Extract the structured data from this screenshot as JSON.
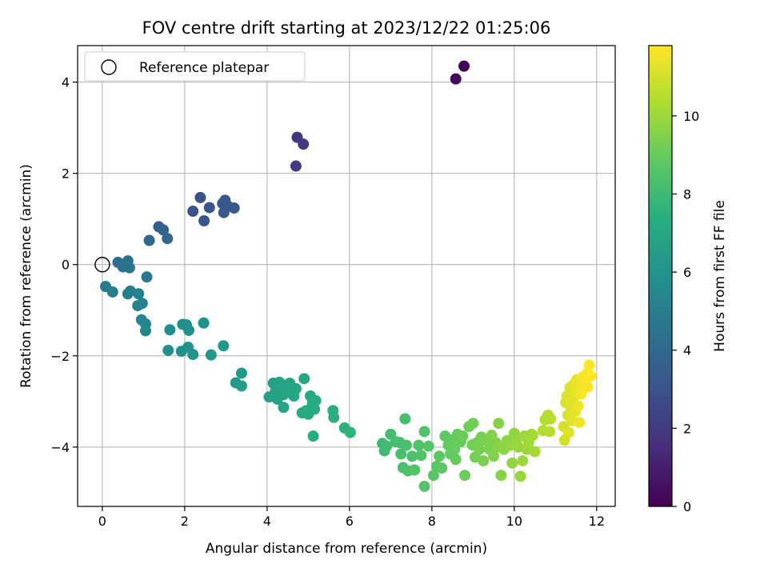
{
  "chart_data": {
    "type": "scatter",
    "title": "FOV centre drift starting at 2023/12/22 01:25:06",
    "xlabel": "Angular distance from reference (arcmin)",
    "ylabel": "Rotation from reference (arcmin)",
    "xlim": [
      -0.6,
      12.45
    ],
    "ylim": [
      -5.3,
      4.8
    ],
    "xticks": [
      0,
      2,
      4,
      6,
      8,
      10,
      12
    ],
    "yticks": [
      -4,
      -2,
      0,
      2,
      4
    ],
    "grid": true,
    "legend": {
      "placement": "top-left",
      "entries": [
        "Reference platepar"
      ]
    },
    "reference_point": {
      "x": 0,
      "y": 0
    },
    "colorbar": {
      "label": "Hours from first FF file",
      "range": [
        0,
        11.8
      ],
      "ticks": [
        0,
        2,
        4,
        6,
        8,
        10
      ],
      "colormap": "viridis"
    },
    "points": [
      {
        "x": 8.78,
        "y": 4.35,
        "c": 0.1
      },
      {
        "x": 8.58,
        "y": 4.07,
        "c": 0.3
      },
      {
        "x": 4.73,
        "y": 2.79,
        "c": 1.8
      },
      {
        "x": 4.88,
        "y": 2.64,
        "c": 1.9
      },
      {
        "x": 4.7,
        "y": 2.16,
        "c": 2.0
      },
      {
        "x": 2.38,
        "y": 1.47,
        "c": 3.0
      },
      {
        "x": 2.2,
        "y": 1.17,
        "c": 3.0
      },
      {
        "x": 2.47,
        "y": 0.96,
        "c": 3.1
      },
      {
        "x": 2.6,
        "y": 1.25,
        "c": 3.1
      },
      {
        "x": 2.92,
        "y": 1.34,
        "c": 3.2
      },
      {
        "x": 2.98,
        "y": 1.41,
        "c": 3.2
      },
      {
        "x": 3.05,
        "y": 1.28,
        "c": 3.2
      },
      {
        "x": 2.95,
        "y": 1.14,
        "c": 3.3
      },
      {
        "x": 3.2,
        "y": 1.24,
        "c": 3.3
      },
      {
        "x": 1.37,
        "y": 0.83,
        "c": 3.6
      },
      {
        "x": 1.48,
        "y": 0.76,
        "c": 3.7
      },
      {
        "x": 1.58,
        "y": 0.57,
        "c": 3.8
      },
      {
        "x": 1.14,
        "y": 0.53,
        "c": 3.9
      },
      {
        "x": 0.38,
        "y": 0.05,
        "c": 4.3
      },
      {
        "x": 0.5,
        "y": -0.05,
        "c": 4.4
      },
      {
        "x": 0.62,
        "y": 0.08,
        "c": 4.4
      },
      {
        "x": 0.66,
        "y": -0.07,
        "c": 4.5
      },
      {
        "x": 1.08,
        "y": -0.27,
        "c": 4.6
      },
      {
        "x": 0.08,
        "y": -0.48,
        "c": 4.8
      },
      {
        "x": 0.25,
        "y": -0.6,
        "c": 4.9
      },
      {
        "x": 0.62,
        "y": -0.64,
        "c": 5.0
      },
      {
        "x": 0.68,
        "y": -0.58,
        "c": 5.0
      },
      {
        "x": 0.88,
        "y": -0.64,
        "c": 5.1
      },
      {
        "x": 0.86,
        "y": -0.9,
        "c": 5.2
      },
      {
        "x": 0.97,
        "y": -0.85,
        "c": 5.2
      },
      {
        "x": 0.95,
        "y": -1.21,
        "c": 5.3
      },
      {
        "x": 1.05,
        "y": -1.3,
        "c": 5.3
      },
      {
        "x": 1.05,
        "y": -1.45,
        "c": 5.4
      },
      {
        "x": 1.64,
        "y": -1.43,
        "c": 5.7
      },
      {
        "x": 1.6,
        "y": -1.88,
        "c": 5.8
      },
      {
        "x": 1.92,
        "y": -1.9,
        "c": 5.9
      },
      {
        "x": 1.95,
        "y": -1.31,
        "c": 5.8
      },
      {
        "x": 2.04,
        "y": -1.32,
        "c": 5.8
      },
      {
        "x": 2.1,
        "y": -1.44,
        "c": 5.9
      },
      {
        "x": 2.08,
        "y": -1.81,
        "c": 6.0
      },
      {
        "x": 2.2,
        "y": -1.97,
        "c": 6.1
      },
      {
        "x": 2.46,
        "y": -1.28,
        "c": 6.0
      },
      {
        "x": 2.64,
        "y": -1.98,
        "c": 6.2
      },
      {
        "x": 2.94,
        "y": -1.78,
        "c": 6.3
      },
      {
        "x": 3.24,
        "y": -2.59,
        "c": 6.4
      },
      {
        "x": 3.38,
        "y": -2.38,
        "c": 6.4
      },
      {
        "x": 3.38,
        "y": -2.66,
        "c": 6.5
      },
      {
        "x": 4.05,
        "y": -2.9,
        "c": 6.6
      },
      {
        "x": 4.15,
        "y": -2.6,
        "c": 6.6
      },
      {
        "x": 4.2,
        "y": -2.78,
        "c": 6.7
      },
      {
        "x": 4.25,
        "y": -2.95,
        "c": 6.7
      },
      {
        "x": 4.3,
        "y": -2.58,
        "c": 6.7
      },
      {
        "x": 4.35,
        "y": -2.7,
        "c": 6.8
      },
      {
        "x": 4.4,
        "y": -2.85,
        "c": 6.8
      },
      {
        "x": 4.45,
        "y": -2.65,
        "c": 6.8
      },
      {
        "x": 4.5,
        "y": -2.8,
        "c": 6.9
      },
      {
        "x": 4.55,
        "y": -2.6,
        "c": 6.9
      },
      {
        "x": 4.6,
        "y": -2.75,
        "c": 6.9
      },
      {
        "x": 4.65,
        "y": -2.88,
        "c": 7.0
      },
      {
        "x": 4.7,
        "y": -2.72,
        "c": 7.0
      },
      {
        "x": 4.4,
        "y": -3.13,
        "c": 6.9
      },
      {
        "x": 4.9,
        "y": -2.5,
        "c": 7.0
      },
      {
        "x": 4.85,
        "y": -3.25,
        "c": 7.1
      },
      {
        "x": 4.95,
        "y": -3.2,
        "c": 7.1
      },
      {
        "x": 5.0,
        "y": -3.28,
        "c": 7.2
      },
      {
        "x": 5.05,
        "y": -2.88,
        "c": 7.1
      },
      {
        "x": 5.1,
        "y": -3.05,
        "c": 7.2
      },
      {
        "x": 5.15,
        "y": -3.17,
        "c": 7.2
      },
      {
        "x": 5.18,
        "y": -2.98,
        "c": 7.2
      },
      {
        "x": 5.12,
        "y": -3.76,
        "c": 7.3
      },
      {
        "x": 5.6,
        "y": -3.2,
        "c": 7.4
      },
      {
        "x": 5.62,
        "y": -3.35,
        "c": 7.4
      },
      {
        "x": 5.88,
        "y": -3.58,
        "c": 7.5
      },
      {
        "x": 6.02,
        "y": -3.68,
        "c": 7.6
      },
      {
        "x": 6.8,
        "y": -3.92,
        "c": 8.0
      },
      {
        "x": 6.85,
        "y": -4.08,
        "c": 8.0
      },
      {
        "x": 6.9,
        "y": -3.98,
        "c": 8.1
      },
      {
        "x": 7.0,
        "y": -3.72,
        "c": 8.1
      },
      {
        "x": 7.12,
        "y": -3.88,
        "c": 8.2
      },
      {
        "x": 7.22,
        "y": -3.9,
        "c": 8.2
      },
      {
        "x": 7.25,
        "y": -4.15,
        "c": 8.3
      },
      {
        "x": 7.3,
        "y": -4.45,
        "c": 8.3
      },
      {
        "x": 7.35,
        "y": -3.38,
        "c": 8.2
      },
      {
        "x": 7.38,
        "y": -3.96,
        "c": 8.3
      },
      {
        "x": 7.42,
        "y": -4.52,
        "c": 8.4
      },
      {
        "x": 7.52,
        "y": -4.2,
        "c": 8.4
      },
      {
        "x": 7.58,
        "y": -4.5,
        "c": 8.5
      },
      {
        "x": 7.68,
        "y": -3.96,
        "c": 8.5
      },
      {
        "x": 7.74,
        "y": -4.18,
        "c": 8.5
      },
      {
        "x": 7.82,
        "y": -4.86,
        "c": 8.6
      },
      {
        "x": 7.82,
        "y": -3.66,
        "c": 8.5
      },
      {
        "x": 7.92,
        "y": -3.98,
        "c": 8.6
      },
      {
        "x": 8.04,
        "y": -4.62,
        "c": 8.7
      },
      {
        "x": 8.12,
        "y": -4.42,
        "c": 8.7
      },
      {
        "x": 8.18,
        "y": -4.2,
        "c": 8.8
      },
      {
        "x": 8.24,
        "y": -4.46,
        "c": 8.8
      },
      {
        "x": 8.32,
        "y": -3.76,
        "c": 8.8
      },
      {
        "x": 8.4,
        "y": -3.96,
        "c": 8.9
      },
      {
        "x": 8.45,
        "y": -4.15,
        "c": 8.9
      },
      {
        "x": 8.5,
        "y": -3.84,
        "c": 8.9
      },
      {
        "x": 8.55,
        "y": -4.05,
        "c": 9.0
      },
      {
        "x": 8.58,
        "y": -4.27,
        "c": 9.0
      },
      {
        "x": 8.62,
        "y": -3.72,
        "c": 9.0
      },
      {
        "x": 8.7,
        "y": -3.88,
        "c": 9.0
      },
      {
        "x": 8.75,
        "y": -3.76,
        "c": 9.1
      },
      {
        "x": 8.8,
        "y": -4.62,
        "c": 9.1
      },
      {
        "x": 8.9,
        "y": -3.55,
        "c": 9.1
      },
      {
        "x": 8.98,
        "y": -3.95,
        "c": 9.2
      },
      {
        "x": 9.0,
        "y": -3.48,
        "c": 9.2
      },
      {
        "x": 9.05,
        "y": -4.22,
        "c": 9.2
      },
      {
        "x": 9.1,
        "y": -3.9,
        "c": 9.3
      },
      {
        "x": 9.15,
        "y": -4.05,
        "c": 9.3
      },
      {
        "x": 9.2,
        "y": -3.78,
        "c": 9.3
      },
      {
        "x": 9.25,
        "y": -4.3,
        "c": 9.4
      },
      {
        "x": 9.32,
        "y": -3.86,
        "c": 9.4
      },
      {
        "x": 9.4,
        "y": -4.05,
        "c": 9.4
      },
      {
        "x": 9.45,
        "y": -3.74,
        "c": 9.5
      },
      {
        "x": 9.5,
        "y": -4.2,
        "c": 9.5
      },
      {
        "x": 9.55,
        "y": -3.9,
        "c": 9.5
      },
      {
        "x": 9.6,
        "y": -4.0,
        "c": 9.6
      },
      {
        "x": 9.62,
        "y": -3.48,
        "c": 9.6
      },
      {
        "x": 9.68,
        "y": -4.62,
        "c": 9.6
      },
      {
        "x": 9.75,
        "y": -4.05,
        "c": 9.7
      },
      {
        "x": 9.82,
        "y": -3.86,
        "c": 9.7
      },
      {
        "x": 9.9,
        "y": -3.96,
        "c": 9.8
      },
      {
        "x": 9.95,
        "y": -4.35,
        "c": 9.8
      },
      {
        "x": 10.0,
        "y": -3.7,
        "c": 9.8
      },
      {
        "x": 10.05,
        "y": -3.88,
        "c": 9.9
      },
      {
        "x": 10.1,
        "y": -4.0,
        "c": 9.9
      },
      {
        "x": 10.15,
        "y": -4.64,
        "c": 9.9
      },
      {
        "x": 10.2,
        "y": -4.3,
        "c": 10.0
      },
      {
        "x": 10.25,
        "y": -3.76,
        "c": 10.0
      },
      {
        "x": 10.3,
        "y": -4.05,
        "c": 10.0
      },
      {
        "x": 10.35,
        "y": -3.9,
        "c": 10.1
      },
      {
        "x": 10.42,
        "y": -3.72,
        "c": 10.1
      },
      {
        "x": 10.5,
        "y": -4.1,
        "c": 10.2
      },
      {
        "x": 10.45,
        "y": -3.74,
        "c": 10.2
      },
      {
        "x": 10.7,
        "y": -3.64,
        "c": 10.4
      },
      {
        "x": 10.75,
        "y": -3.4,
        "c": 10.4
      },
      {
        "x": 10.82,
        "y": -3.3,
        "c": 10.5
      },
      {
        "x": 10.86,
        "y": -3.66,
        "c": 10.5
      },
      {
        "x": 10.88,
        "y": -3.38,
        "c": 10.5
      },
      {
        "x": 11.2,
        "y": -3.55,
        "c": 11.0
      },
      {
        "x": 11.22,
        "y": -3.85,
        "c": 11.0
      },
      {
        "x": 11.25,
        "y": -3.02,
        "c": 11.1
      },
      {
        "x": 11.28,
        "y": -2.88,
        "c": 11.1
      },
      {
        "x": 11.3,
        "y": -3.3,
        "c": 11.1
      },
      {
        "x": 11.32,
        "y": -3.68,
        "c": 11.2
      },
      {
        "x": 11.35,
        "y": -2.7,
        "c": 11.2
      },
      {
        "x": 11.38,
        "y": -3.14,
        "c": 11.2
      },
      {
        "x": 11.4,
        "y": -3.42,
        "c": 11.3
      },
      {
        "x": 11.42,
        "y": -2.96,
        "c": 11.3
      },
      {
        "x": 11.45,
        "y": -2.62,
        "c": 11.3
      },
      {
        "x": 11.48,
        "y": -3.22,
        "c": 11.4
      },
      {
        "x": 11.5,
        "y": -2.78,
        "c": 11.4
      },
      {
        "x": 11.52,
        "y": -2.52,
        "c": 11.4
      },
      {
        "x": 11.55,
        "y": -3.1,
        "c": 11.5
      },
      {
        "x": 11.58,
        "y": -3.46,
        "c": 11.5
      },
      {
        "x": 11.6,
        "y": -2.64,
        "c": 11.5
      },
      {
        "x": 11.62,
        "y": -2.84,
        "c": 11.6
      },
      {
        "x": 11.65,
        "y": -2.48,
        "c": 11.6
      },
      {
        "x": 11.68,
        "y": -2.72,
        "c": 11.6
      },
      {
        "x": 11.72,
        "y": -2.6,
        "c": 11.7
      },
      {
        "x": 11.75,
        "y": -2.4,
        "c": 11.7
      },
      {
        "x": 11.78,
        "y": -2.68,
        "c": 11.7
      },
      {
        "x": 11.82,
        "y": -2.2,
        "c": 11.8
      },
      {
        "x": 11.86,
        "y": -2.44,
        "c": 11.8
      }
    ]
  }
}
